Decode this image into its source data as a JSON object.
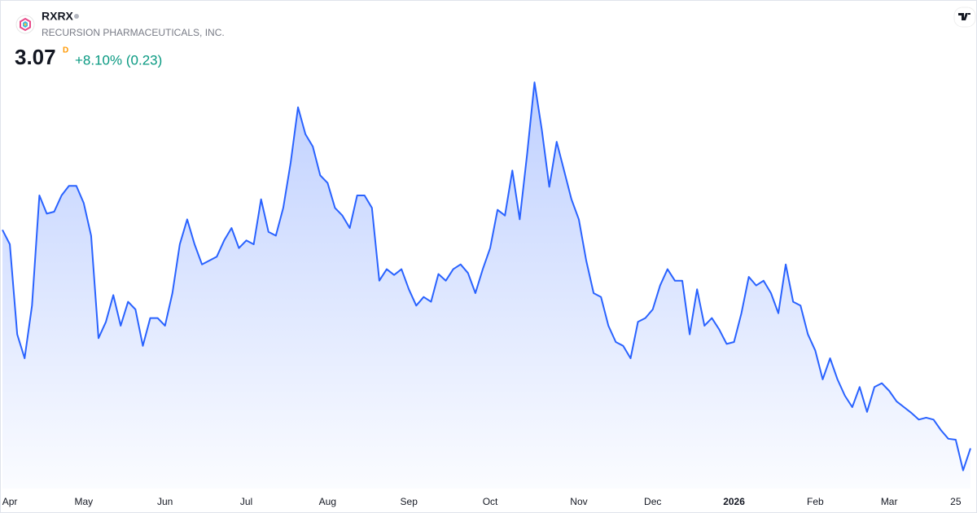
{
  "header": {
    "symbol": "RXRX",
    "company": "RECURSION PHARMACEUTICALS, INC.",
    "price": "3.07",
    "interval": "D",
    "change": "+8.10% (0.23)"
  },
  "chart_data": {
    "type": "area",
    "color": "#2962ff",
    "categories": [
      null,
      "Apr",
      null,
      null,
      null,
      null,
      null,
      null,
      null,
      null,
      null,
      "May",
      null,
      null,
      null,
      null,
      null,
      null,
      null,
      null,
      null,
      null,
      "Jun",
      null,
      null,
      null,
      null,
      null,
      null,
      null,
      null,
      null,
      null,
      "Jul",
      null,
      null,
      null,
      null,
      null,
      null,
      null,
      null,
      null,
      null,
      "Aug",
      null,
      null,
      null,
      null,
      null,
      null,
      null,
      null,
      null,
      null,
      "Sep",
      null,
      null,
      null,
      null,
      null,
      null,
      null,
      null,
      null,
      null,
      "Oct",
      null,
      null,
      null,
      null,
      null,
      null,
      null,
      null,
      null,
      null,
      null,
      "Nov",
      null,
      null,
      null,
      null,
      null,
      null,
      null,
      null,
      null,
      "Dec",
      null,
      null,
      null,
      null,
      null,
      null,
      null,
      null,
      null,
      null,
      "2026",
      null,
      null,
      null,
      null,
      null,
      null,
      null,
      null,
      null,
      null,
      "Feb",
      null,
      null,
      null,
      null,
      null,
      null,
      null,
      null,
      null,
      "Mar",
      null,
      null,
      null,
      null,
      null,
      null,
      null,
      null,
      "25",
      null,
      null
    ],
    "values": [
      5.35,
      5.2,
      4.26,
      4.01,
      4.56,
      5.71,
      5.52,
      5.54,
      5.71,
      5.81,
      5.81,
      5.63,
      5.29,
      4.22,
      4.39,
      4.67,
      4.35,
      4.6,
      4.52,
      4.14,
      4.43,
      4.43,
      4.35,
      4.69,
      5.2,
      5.46,
      5.2,
      4.99,
      5.03,
      5.07,
      5.24,
      5.37,
      5.16,
      5.24,
      5.2,
      5.67,
      5.33,
      5.29,
      5.58,
      6.05,
      6.63,
      6.35,
      6.22,
      5.92,
      5.84,
      5.58,
      5.5,
      5.37,
      5.71,
      5.71,
      5.58,
      4.82,
      4.94,
      4.88,
      4.94,
      4.73,
      4.56,
      4.65,
      4.6,
      4.89,
      4.82,
      4.94,
      4.99,
      4.9,
      4.69,
      4.94,
      5.16,
      5.56,
      5.5,
      5.97,
      5.46,
      6.14,
      6.89,
      6.39,
      5.8,
      6.27,
      5.97,
      5.67,
      5.46,
      5.03,
      4.69,
      4.65,
      4.35,
      4.18,
      4.14,
      4.01,
      4.39,
      4.43,
      4.52,
      4.77,
      4.94,
      4.82,
      4.82,
      4.26,
      4.73,
      4.35,
      4.43,
      4.31,
      4.16,
      4.18,
      4.48,
      4.86,
      4.77,
      4.82,
      4.69,
      4.48,
      4.99,
      4.6,
      4.56,
      4.26,
      4.09,
      3.79,
      4.01,
      3.79,
      3.62,
      3.5,
      3.71,
      3.45,
      3.71,
      3.75,
      3.67,
      3.56,
      3.5,
      3.44,
      3.37,
      3.39,
      3.37,
      3.26,
      3.17,
      3.16,
      2.84,
      3.07
    ],
    "ylim": [
      2.65,
      7.75
    ]
  }
}
